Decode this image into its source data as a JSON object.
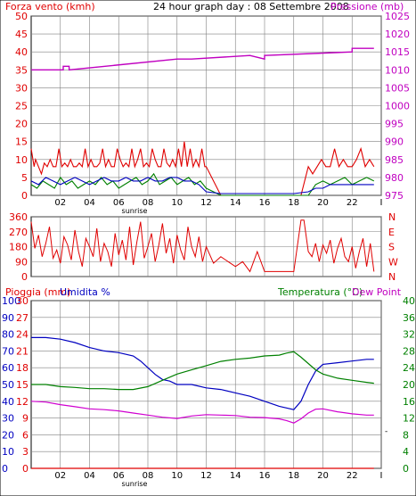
{
  "header": {
    "title_left": "Forza vento (kmh)",
    "title_center": "24 hour graph day : 08 Settembre 2008",
    "title_right": "Pressione (mb)"
  },
  "colors": {
    "wind_axis": "#e00000",
    "pressure_axis": "#c000c0",
    "rain_axis": "#e00000",
    "humidity_axis": "#0000c0",
    "temperature_axis": "#008000",
    "grid": "#808080",
    "frame": "#000000"
  },
  "x_ticks": [
    "02",
    "04",
    "06",
    "08",
    "10",
    "12",
    "14",
    "16",
    "18",
    "20",
    "22",
    "I"
  ],
  "sunrise_label": "sunrise",
  "chart_data": [
    {
      "type": "line",
      "title": "24 hour graph day : 08 Settembre 2008",
      "ylabel": "Forza vento (kmh)",
      "ylabel_right": "Pressione (mb)",
      "ylim": [
        0,
        50
      ],
      "ylim_right": [
        975,
        1025
      ],
      "y_ticks": [
        0,
        5,
        10,
        15,
        20,
        25,
        30,
        35,
        40,
        45,
        50
      ],
      "y_ticks_right": [
        975,
        980,
        985,
        990,
        995,
        1000,
        1005,
        1010,
        1015,
        1020,
        1025
      ],
      "xlim": [
        0,
        24
      ],
      "series": [
        {
          "color": "#e00000",
          "x": [
            0.0,
            0.2,
            0.3,
            0.5,
            0.7,
            0.9,
            1.1,
            1.3,
            1.5,
            1.7,
            1.9,
            2.1,
            2.3,
            2.5,
            2.7,
            2.9,
            3.1,
            3.3,
            3.5,
            3.7,
            3.9,
            4.1,
            4.3,
            4.5,
            4.7,
            4.9,
            5.1,
            5.3,
            5.5,
            5.7,
            5.9,
            6.1,
            6.3,
            6.5,
            6.7,
            6.9,
            7.1,
            7.3,
            7.5,
            7.7,
            7.9,
            8.1,
            8.3,
            8.5,
            8.7,
            8.9,
            9.1,
            9.3,
            9.5,
            9.7,
            9.9,
            10.1,
            10.3,
            10.5,
            10.7,
            10.9,
            11.1,
            11.3,
            11.5,
            11.7,
            11.9,
            12.0,
            13.0,
            14.0,
            15.0,
            16.0,
            17.0,
            18.0,
            18.5,
            19.0,
            19.3,
            19.6,
            19.9,
            20.2,
            20.5,
            20.8,
            21.1,
            21.4,
            21.7,
            22.0,
            22.3,
            22.6,
            22.9,
            23.2,
            23.5
          ],
          "values": [
            13,
            8,
            10,
            8,
            6,
            9,
            8,
            10,
            8,
            8,
            13,
            8,
            9,
            8,
            10,
            8,
            8,
            9,
            8,
            13,
            8,
            10,
            8,
            8,
            9,
            13,
            8,
            10,
            8,
            8,
            13,
            10,
            8,
            9,
            8,
            13,
            8,
            10,
            13,
            8,
            9,
            8,
            13,
            10,
            8,
            8,
            13,
            9,
            8,
            10,
            8,
            13,
            8,
            15,
            8,
            13,
            8,
            10,
            8,
            13,
            8,
            8,
            0,
            0,
            0,
            0,
            0,
            0,
            0,
            8,
            6,
            8,
            10,
            8,
            8,
            13,
            8,
            10,
            8,
            8,
            10,
            13,
            8,
            10,
            8
          ]
        },
        {
          "color": "#008000",
          "x": [
            0.0,
            0.4,
            0.8,
            1.2,
            1.6,
            2.0,
            2.4,
            2.8,
            3.2,
            3.6,
            4.0,
            4.4,
            4.8,
            5.2,
            5.6,
            6.0,
            6.4,
            6.8,
            7.2,
            7.6,
            8.0,
            8.4,
            8.8,
            9.2,
            9.6,
            10.0,
            10.4,
            10.8,
            11.2,
            11.6,
            12.0,
            13.0,
            14.0,
            15.0,
            16.0,
            17.0,
            18.0,
            19.0,
            19.5,
            20.0,
            20.5,
            21.0,
            21.5,
            22.0,
            22.5,
            23.0,
            23.5
          ],
          "values": [
            3,
            2,
            4,
            3,
            2,
            5,
            3,
            4,
            2,
            3,
            4,
            3,
            5,
            3,
            4,
            2,
            3,
            4,
            5,
            3,
            4,
            6,
            3,
            4,
            5,
            3,
            4,
            5,
            3,
            4,
            2,
            0,
            0,
            0,
            0,
            0,
            0,
            0,
            3,
            4,
            3,
            4,
            5,
            3,
            4,
            5,
            4
          ]
        },
        {
          "color": "#0000c0",
          "x": [
            0.0,
            0.5,
            1.0,
            1.5,
            2.0,
            2.5,
            3.0,
            3.5,
            4.0,
            4.5,
            5.0,
            5.5,
            6.0,
            6.5,
            7.0,
            7.5,
            8.0,
            8.5,
            9.0,
            9.5,
            10.0,
            10.5,
            11.0,
            11.5,
            12.0,
            13.0,
            14.0,
            15.0,
            16.0,
            17.0,
            18.0,
            19.0,
            19.5,
            20.0,
            20.5,
            21.0,
            21.5,
            22.0,
            22.5,
            23.0,
            23.5
          ],
          "values": [
            4,
            3,
            5,
            4,
            3,
            4,
            5,
            4,
            3,
            4,
            5,
            4,
            4,
            5,
            4,
            4,
            5,
            4,
            4,
            5,
            5,
            4,
            4,
            3,
            1,
            0.5,
            0.5,
            0.5,
            0.5,
            0.5,
            0.5,
            1,
            2,
            2,
            3,
            3,
            3,
            3,
            3,
            3,
            3
          ]
        },
        {
          "color": "#c000c0",
          "axis": "right",
          "x": [
            0,
            2.2,
            2.2,
            2.6,
            2.6,
            10.0,
            10.0,
            11.0,
            11.0,
            15.0,
            15.0,
            16.0,
            16.0,
            22.0,
            22.0,
            23.5
          ],
          "values": [
            1010,
            1010,
            1011,
            1011,
            1010,
            1013,
            1013,
            1013,
            1013,
            1014,
            1014,
            1013,
            1014,
            1015,
            1016,
            1016
          ]
        }
      ]
    },
    {
      "type": "scatter",
      "ylim": [
        0,
        360
      ],
      "y_ticks": [
        0,
        90,
        180,
        270,
        360
      ],
      "y_ticks_right": [
        "N",
        "W",
        "S",
        "E",
        "N"
      ],
      "xlim": [
        0,
        24
      ],
      "series": [
        {
          "color": "#e00000",
          "x": [
            0.0,
            0.25,
            0.5,
            0.75,
            1.0,
            1.25,
            1.5,
            1.75,
            2.0,
            2.25,
            2.5,
            2.75,
            3.0,
            3.25,
            3.5,
            3.75,
            4.0,
            4.25,
            4.5,
            4.75,
            5.0,
            5.25,
            5.5,
            5.75,
            6.0,
            6.25,
            6.5,
            6.75,
            7.0,
            7.25,
            7.5,
            7.75,
            8.0,
            8.25,
            8.5,
            8.75,
            9.0,
            9.25,
            9.5,
            9.75,
            10.0,
            10.25,
            10.5,
            10.75,
            11.0,
            11.25,
            11.5,
            11.75,
            12.0,
            12.5,
            13.0,
            13.5,
            14.0,
            14.5,
            15.0,
            15.5,
            16.0,
            17.0,
            17.5,
            18.0,
            18.5,
            18.7,
            19.0,
            19.25,
            19.5,
            19.75,
            20.0,
            20.25,
            20.5,
            20.75,
            21.0,
            21.25,
            21.5,
            21.75,
            22.0,
            22.25,
            22.5,
            22.75,
            23.0,
            23.25,
            23.5
          ],
          "values": [
            330,
            170,
            250,
            120,
            200,
            300,
            110,
            160,
            80,
            240,
            190,
            100,
            280,
            150,
            60,
            230,
            180,
            120,
            290,
            90,
            200,
            150,
            60,
            260,
            130,
            220,
            100,
            300,
            70,
            210,
            330,
            110,
            180,
            260,
            90,
            190,
            320,
            140,
            230,
            80,
            250,
            160,
            100,
            300,
            180,
            120,
            240,
            90,
            180,
            80,
            120,
            90,
            60,
            90,
            30,
            150,
            30,
            30,
            30,
            30,
            340,
            340,
            150,
            120,
            200,
            90,
            190,
            140,
            220,
            80,
            170,
            230,
            120,
            90,
            180,
            50,
            150,
            230,
            60,
            200,
            30
          ]
        }
      ]
    },
    {
      "type": "line",
      "ylabel": "Pioggia (mm)",
      "ylabel_2": "Umidita %",
      "ylabel_right": "Temperatura (°C)",
      "ylabel_right_2": "Dew Point",
      "ylim_rain": [
        0,
        30
      ],
      "y_ticks_rain": [
        0,
        3,
        6,
        9,
        12,
        15,
        18,
        21,
        24,
        27,
        30
      ],
      "ylim_humidity": [
        0,
        100
      ],
      "y_ticks_humidity": [
        0,
        10,
        20,
        30,
        40,
        50,
        60,
        70,
        80,
        90,
        100
      ],
      "ylim_temperature": [
        0,
        40
      ],
      "y_ticks_temperature": [
        0,
        4,
        8,
        12,
        16,
        20,
        24,
        28,
        32,
        36,
        40
      ],
      "xlim": [
        0,
        24
      ],
      "series": [
        {
          "name": "Umidita %",
          "color": "#0000c0",
          "axis": "humidity",
          "x": [
            0,
            1,
            2,
            3,
            4,
            5,
            6,
            7,
            7.5,
            8,
            8.5,
            9,
            9.5,
            10,
            11,
            12,
            13,
            14,
            15,
            16,
            17,
            17.5,
            18,
            18.5,
            19,
            19.5,
            20,
            21,
            22,
            23,
            23.5
          ],
          "values": [
            78,
            78,
            77,
            75,
            72,
            70,
            69,
            67,
            64,
            60,
            56,
            53,
            52,
            50,
            50,
            48,
            47,
            45,
            43,
            40,
            37,
            36,
            35,
            40,
            50,
            58,
            62,
            63,
            64,
            65,
            65
          ]
        },
        {
          "name": "Temperatura (°C)",
          "color": "#008000",
          "axis": "temperature",
          "x": [
            0,
            1,
            2,
            3,
            4,
            5,
            6,
            7,
            8,
            9,
            10,
            11,
            12,
            13,
            14,
            15,
            16,
            17,
            17.5,
            18,
            18.5,
            19,
            19.5,
            20,
            21,
            22,
            23,
            23.5
          ],
          "values": [
            20,
            20,
            19.5,
            19.3,
            19,
            19,
            18.8,
            18.8,
            19.5,
            21,
            22.5,
            23.5,
            24.5,
            25.5,
            26,
            26.3,
            26.8,
            27,
            27.5,
            27.8,
            26.5,
            25,
            23.5,
            22.5,
            21.5,
            21,
            20.5,
            20.3
          ]
        },
        {
          "name": "Dew Point",
          "color": "#d000d0",
          "axis": "temperature",
          "x": [
            0,
            1,
            2,
            3,
            4,
            5,
            6,
            7,
            8,
            9,
            10,
            11,
            12,
            13,
            14,
            15,
            16,
            17,
            17.5,
            18,
            18.5,
            19,
            19.5,
            20,
            21,
            22,
            23,
            23.5
          ],
          "values": [
            16,
            15.8,
            15.2,
            14.7,
            14.2,
            14,
            13.7,
            13.2,
            12.7,
            12.2,
            11.9,
            12.5,
            12.8,
            12.7,
            12.6,
            12.2,
            12.1,
            11.8,
            11.4,
            10.8,
            11.8,
            13.2,
            14.1,
            14.2,
            13.5,
            13,
            12.7,
            12.7
          ]
        },
        {
          "name": "Pioggia (mm)",
          "color": "#e00000",
          "axis": "rain",
          "x": [
            0,
            23.5
          ],
          "values": [
            0,
            0
          ]
        }
      ]
    }
  ]
}
